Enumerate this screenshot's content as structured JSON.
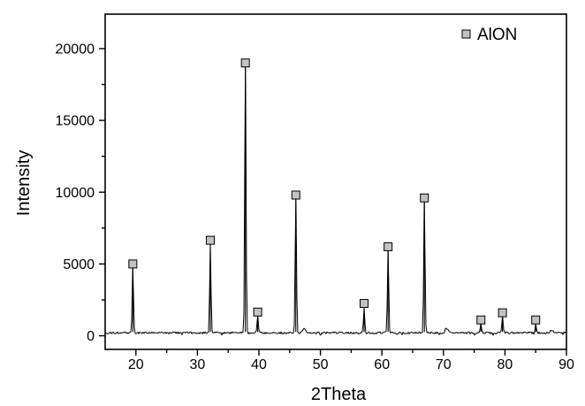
{
  "figure": {
    "background": "#ffffff",
    "axis_color": "#000000"
  },
  "chart_data": {
    "type": "line",
    "title": "",
    "xlabel": "2Theta",
    "ylabel": "Intensity",
    "xlim": [
      15,
      90
    ],
    "ylim": [
      -950,
      22400
    ],
    "x_major_ticks": [
      20,
      30,
      40,
      50,
      60,
      70,
      80,
      90
    ],
    "x_minor_ticks": [
      25,
      35,
      45,
      55,
      65,
      75,
      85
    ],
    "y_major_ticks": [
      0,
      5000,
      10000,
      15000,
      20000
    ],
    "y_minor_ticks": [
      2500,
      7500,
      12500,
      17500
    ],
    "grid": false,
    "legend": {
      "label": "AlON",
      "marker": "square",
      "marker_fill": "#c2c2c2",
      "marker_border": "#000000",
      "position": "top-right"
    },
    "series": [
      {
        "name": "AlON",
        "color": "#000000",
        "marker_fill": "#c2c2c2",
        "baseline_intensity": 200,
        "peaks": [
          {
            "two_theta": 19.5,
            "intensity": 5000
          },
          {
            "two_theta": 32.1,
            "intensity": 6650
          },
          {
            "two_theta": 37.8,
            "intensity": 19000
          },
          {
            "two_theta": 39.8,
            "intensity": 1650
          },
          {
            "two_theta": 46.0,
            "intensity": 9800
          },
          {
            "two_theta": 57.1,
            "intensity": 2250
          },
          {
            "two_theta": 61.0,
            "intensity": 6200
          },
          {
            "two_theta": 66.9,
            "intensity": 9600
          },
          {
            "two_theta": 76.1,
            "intensity": 1100
          },
          {
            "two_theta": 79.6,
            "intensity": 1600
          },
          {
            "two_theta": 85.0,
            "intensity": 1100
          }
        ],
        "minor_bumps": [
          {
            "two_theta": 47.3,
            "intensity": 480
          },
          {
            "two_theta": 70.5,
            "intensity": 520
          },
          {
            "two_theta": 87.6,
            "intensity": 420
          }
        ]
      }
    ]
  }
}
